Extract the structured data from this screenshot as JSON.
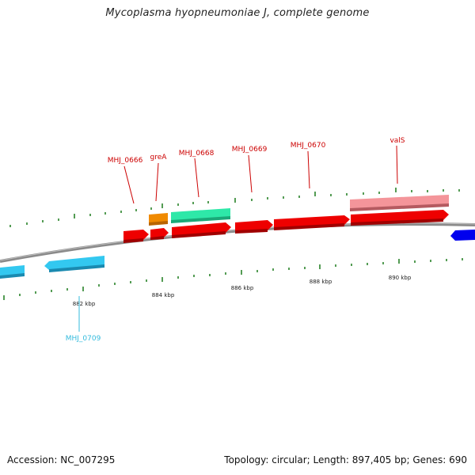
{
  "title": "Mycoplasma hyopneumoniae J, complete genome",
  "footer": {
    "accession": "Accession: NC_007295",
    "summary": "Topology: circular; Length: 897,405 bp; Genes: 690"
  },
  "colors": {
    "backbone": "#8a8a8a",
    "tick": "#1a7a1a",
    "label_red": "#cc0000",
    "label_cyan": "#33bbdd"
  },
  "tick_labels": [
    {
      "text": "882 kbp",
      "pos_bp": 882000
    },
    {
      "text": "884 kbp",
      "pos_bp": 884000
    },
    {
      "text": "886 kbp",
      "pos_bp": 886000
    },
    {
      "text": "888 kbp",
      "pos_bp": 888000
    },
    {
      "text": "890 kbp",
      "pos_bp": 890000
    }
  ],
  "gene_labels": [
    {
      "text": "MHJ_0666",
      "color": "#cc0000"
    },
    {
      "text": "greA",
      "color": "#cc0000"
    },
    {
      "text": "MHJ_0668",
      "color": "#cc0000"
    },
    {
      "text": "MHJ_0669",
      "color": "#cc0000"
    },
    {
      "text": "MHJ_0670",
      "color": "#cc0000"
    },
    {
      "text": "valS",
      "color": "#cc0000"
    },
    {
      "text": "MHJ_0709",
      "color": "#33bbdd"
    }
  ]
}
